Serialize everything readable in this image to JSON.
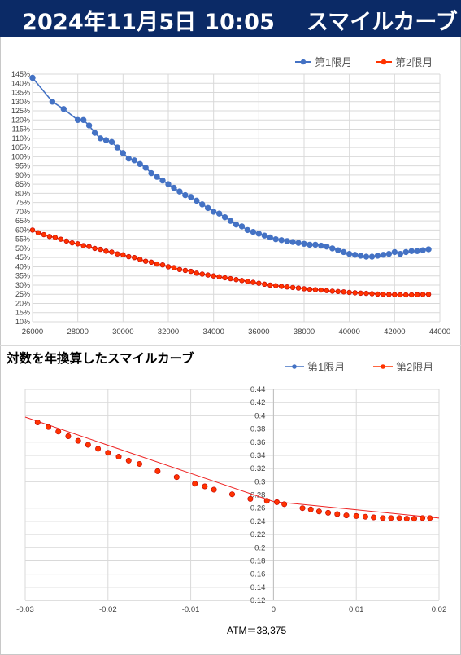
{
  "banner": {
    "datetime": "2024年11月5日 10:05",
    "title": "スマイルカーブ"
  },
  "colors": {
    "banner_bg": "#0b2a66",
    "series1": "#4472c4",
    "series2": "#ff3300"
  },
  "chart_data": [
    {
      "type": "line",
      "title": "",
      "xlabel": "",
      "ylabel": "",
      "xlim": [
        26000,
        44000
      ],
      "ylim": [
        0.1,
        1.45
      ],
      "x_ticks": [
        26000,
        28000,
        30000,
        32000,
        34000,
        36000,
        38000,
        40000,
        42000,
        44000
      ],
      "y_tick_step": 0.05,
      "y_format": "percent",
      "grid": true,
      "legend_position": "top-right",
      "series": [
        {
          "name": "第1限月",
          "color": "#4472c4",
          "x": [
            26000,
            26875,
            27375,
            28000,
            28250,
            28500,
            28750,
            29000,
            29250,
            29500,
            29750,
            30000,
            30250,
            30500,
            30750,
            31000,
            31250,
            31500,
            31750,
            32000,
            32250,
            32500,
            32750,
            33000,
            33250,
            33500,
            33750,
            34000,
            34250,
            34500,
            34750,
            35000,
            35250,
            35500,
            35750,
            36000,
            36250,
            36500,
            36750,
            37000,
            37250,
            37500,
            37750,
            38000,
            38250,
            38500,
            38750,
            39000,
            39250,
            39500,
            39750,
            40000,
            40250,
            40500,
            40750,
            41000,
            41250,
            41500,
            41750,
            42000,
            42250,
            42500,
            42750,
            43000,
            43250,
            43500
          ],
          "y": [
            1.43,
            1.3,
            1.26,
            1.2,
            1.2,
            1.17,
            1.13,
            1.1,
            1.09,
            1.08,
            1.05,
            1.02,
            0.99,
            0.98,
            0.96,
            0.94,
            0.91,
            0.89,
            0.87,
            0.85,
            0.83,
            0.81,
            0.79,
            0.78,
            0.76,
            0.74,
            0.72,
            0.7,
            0.69,
            0.67,
            0.65,
            0.63,
            0.62,
            0.6,
            0.59,
            0.58,
            0.57,
            0.56,
            0.55,
            0.545,
            0.54,
            0.535,
            0.53,
            0.525,
            0.52,
            0.52,
            0.515,
            0.51,
            0.5,
            0.49,
            0.48,
            0.47,
            0.465,
            0.46,
            0.455,
            0.455,
            0.46,
            0.465,
            0.47,
            0.48,
            0.47,
            0.48,
            0.485,
            0.485,
            0.49,
            0.495
          ]
        },
        {
          "name": "第2限月",
          "color": "#ff3300",
          "x": [
            26000,
            26250,
            26500,
            26750,
            27000,
            27250,
            27500,
            27750,
            28000,
            28250,
            28500,
            28750,
            29000,
            29250,
            29500,
            29750,
            30000,
            30250,
            30500,
            30750,
            31000,
            31250,
            31500,
            31750,
            32000,
            32250,
            32500,
            32750,
            33000,
            33250,
            33500,
            33750,
            34000,
            34250,
            34500,
            34750,
            35000,
            35250,
            35500,
            35750,
            36000,
            36250,
            36500,
            36750,
            37000,
            37250,
            37500,
            37750,
            38000,
            38250,
            38500,
            38750,
            39000,
            39250,
            39500,
            39750,
            40000,
            40250,
            40500,
            40750,
            41000,
            41250,
            41500,
            41750,
            42000,
            42250,
            42500,
            42750,
            43000,
            43250,
            43500
          ],
          "y": [
            0.6,
            0.585,
            0.575,
            0.565,
            0.56,
            0.55,
            0.54,
            0.53,
            0.525,
            0.515,
            0.51,
            0.5,
            0.495,
            0.485,
            0.48,
            0.47,
            0.465,
            0.455,
            0.45,
            0.44,
            0.43,
            0.425,
            0.415,
            0.41,
            0.4,
            0.395,
            0.385,
            0.38,
            0.375,
            0.365,
            0.36,
            0.355,
            0.35,
            0.345,
            0.34,
            0.335,
            0.33,
            0.325,
            0.32,
            0.315,
            0.31,
            0.305,
            0.3,
            0.297,
            0.293,
            0.29,
            0.287,
            0.284,
            0.28,
            0.277,
            0.275,
            0.273,
            0.27,
            0.267,
            0.265,
            0.263,
            0.26,
            0.258,
            0.256,
            0.255,
            0.253,
            0.251,
            0.25,
            0.249,
            0.248,
            0.247,
            0.247,
            0.247,
            0.248,
            0.249,
            0.25
          ]
        }
      ]
    },
    {
      "type": "line",
      "title": "対数を年換算したスマイルカーブ",
      "xlabel": "ATM＝38,375",
      "ylabel": "",
      "xlim": [
        -0.03,
        0.02
      ],
      "ylim": [
        0.12,
        0.44
      ],
      "x_ticks": [
        -0.03,
        -0.02,
        -0.01,
        0,
        0.01,
        0.02
      ],
      "y_ticks": [
        0.12,
        0.14,
        0.16,
        0.18,
        0.2,
        0.22,
        0.24,
        0.26,
        0.28,
        0.3,
        0.32,
        0.34,
        0.36,
        0.38,
        0.4,
        0.42,
        0.44
      ],
      "grid": true,
      "legend_position": "top-right",
      "series": [
        {
          "name": "第1限月",
          "color": "#4472c4",
          "x": [],
          "y": []
        },
        {
          "name": "第2限月",
          "color": "#ff3300",
          "trendline": {
            "x": [
              -0.03,
              0.0,
              0.02
            ],
            "y": [
              0.398,
              0.27,
              0.245
            ]
          },
          "x": [
            -0.0285,
            -0.0272,
            -0.026,
            -0.0248,
            -0.0236,
            -0.0224,
            -0.0212,
            -0.02,
            -0.0187,
            -0.0175,
            -0.0162,
            -0.014,
            -0.0117,
            -0.0095,
            -0.0083,
            -0.0072,
            -0.005,
            -0.0028,
            -0.0008,
            0.0004,
            0.0013,
            0.0035,
            0.0045,
            0.0055,
            0.0066,
            0.0077,
            0.0088,
            0.01,
            0.0111,
            0.0121,
            0.0132,
            0.0142,
            0.0152,
            0.0161,
            0.017,
            0.018,
            0.0189
          ],
          "y": [
            0.39,
            0.383,
            0.376,
            0.369,
            0.362,
            0.356,
            0.35,
            0.344,
            0.338,
            0.332,
            0.327,
            0.316,
            0.307,
            0.297,
            0.293,
            0.288,
            0.281,
            0.274,
            0.271,
            0.269,
            0.266,
            0.26,
            0.258,
            0.255,
            0.253,
            0.251,
            0.249,
            0.248,
            0.247,
            0.246,
            0.245,
            0.245,
            0.245,
            0.244,
            0.244,
            0.245,
            0.245
          ]
        }
      ]
    }
  ]
}
